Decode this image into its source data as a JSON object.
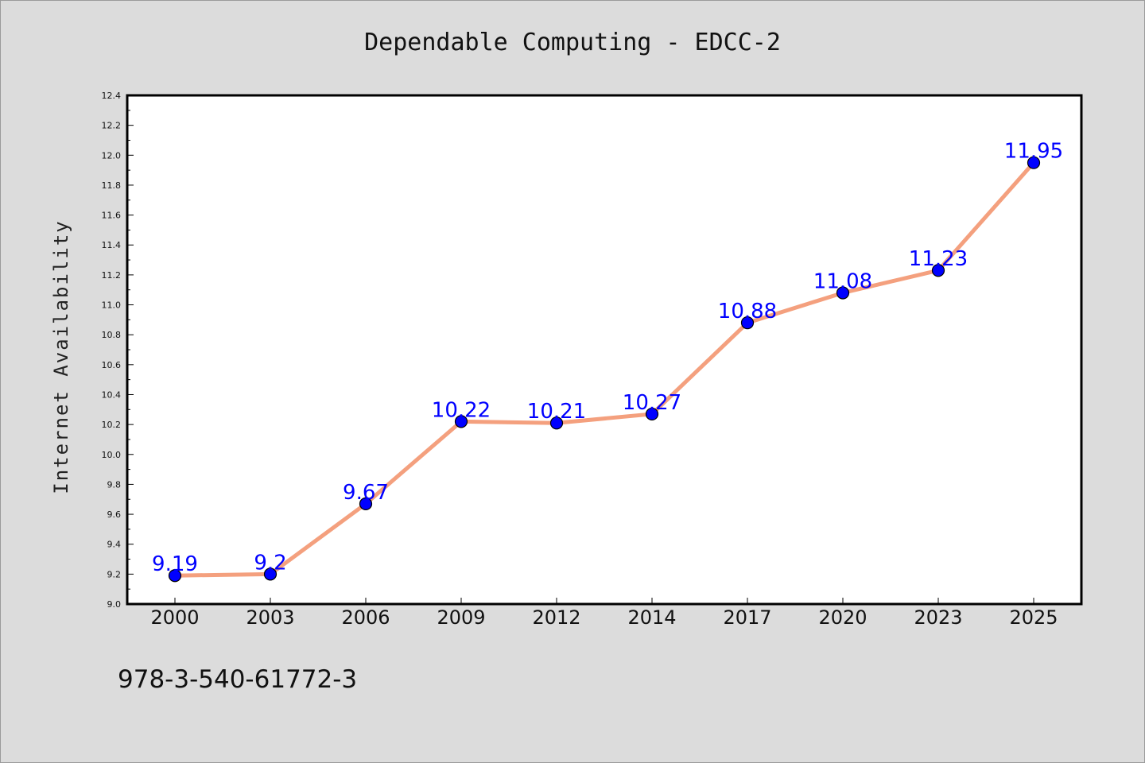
{
  "chart_data": {
    "type": "line",
    "title": "Dependable Computing - EDCC-2",
    "xlabel": "",
    "ylabel": "Internet Availability",
    "categories": [
      "2000",
      "2003",
      "2006",
      "2009",
      "2012",
      "2014",
      "2017",
      "2020",
      "2023",
      "2025"
    ],
    "series": [
      {
        "values": [
          9.19,
          9.2,
          9.67,
          10.22,
          10.21,
          10.27,
          10.88,
          11.08,
          11.23,
          11.95
        ],
        "data_labels": [
          "9.19",
          "9.2",
          "9.67",
          "10.22",
          "10.21",
          "10.27",
          "10.88",
          "11.08",
          "11.23",
          "11.95"
        ],
        "line_color": "#f4a07e",
        "marker_color": "#0000ff"
      }
    ],
    "ylim": [
      9.0,
      12.4
    ],
    "yticks": [
      "9.0",
      "9.2",
      "9.4",
      "9.6",
      "9.8",
      "10.0",
      "10.2",
      "10.4",
      "10.6",
      "10.8",
      "11.0",
      "11.2",
      "11.4",
      "11.6",
      "11.8",
      "12.0",
      "12.2",
      "12.4"
    ],
    "grid": false,
    "legend": "none",
    "background_color": "#dcdcdc",
    "plot_background": "#ffffff"
  },
  "footnote": "978-3-540-61772-3"
}
